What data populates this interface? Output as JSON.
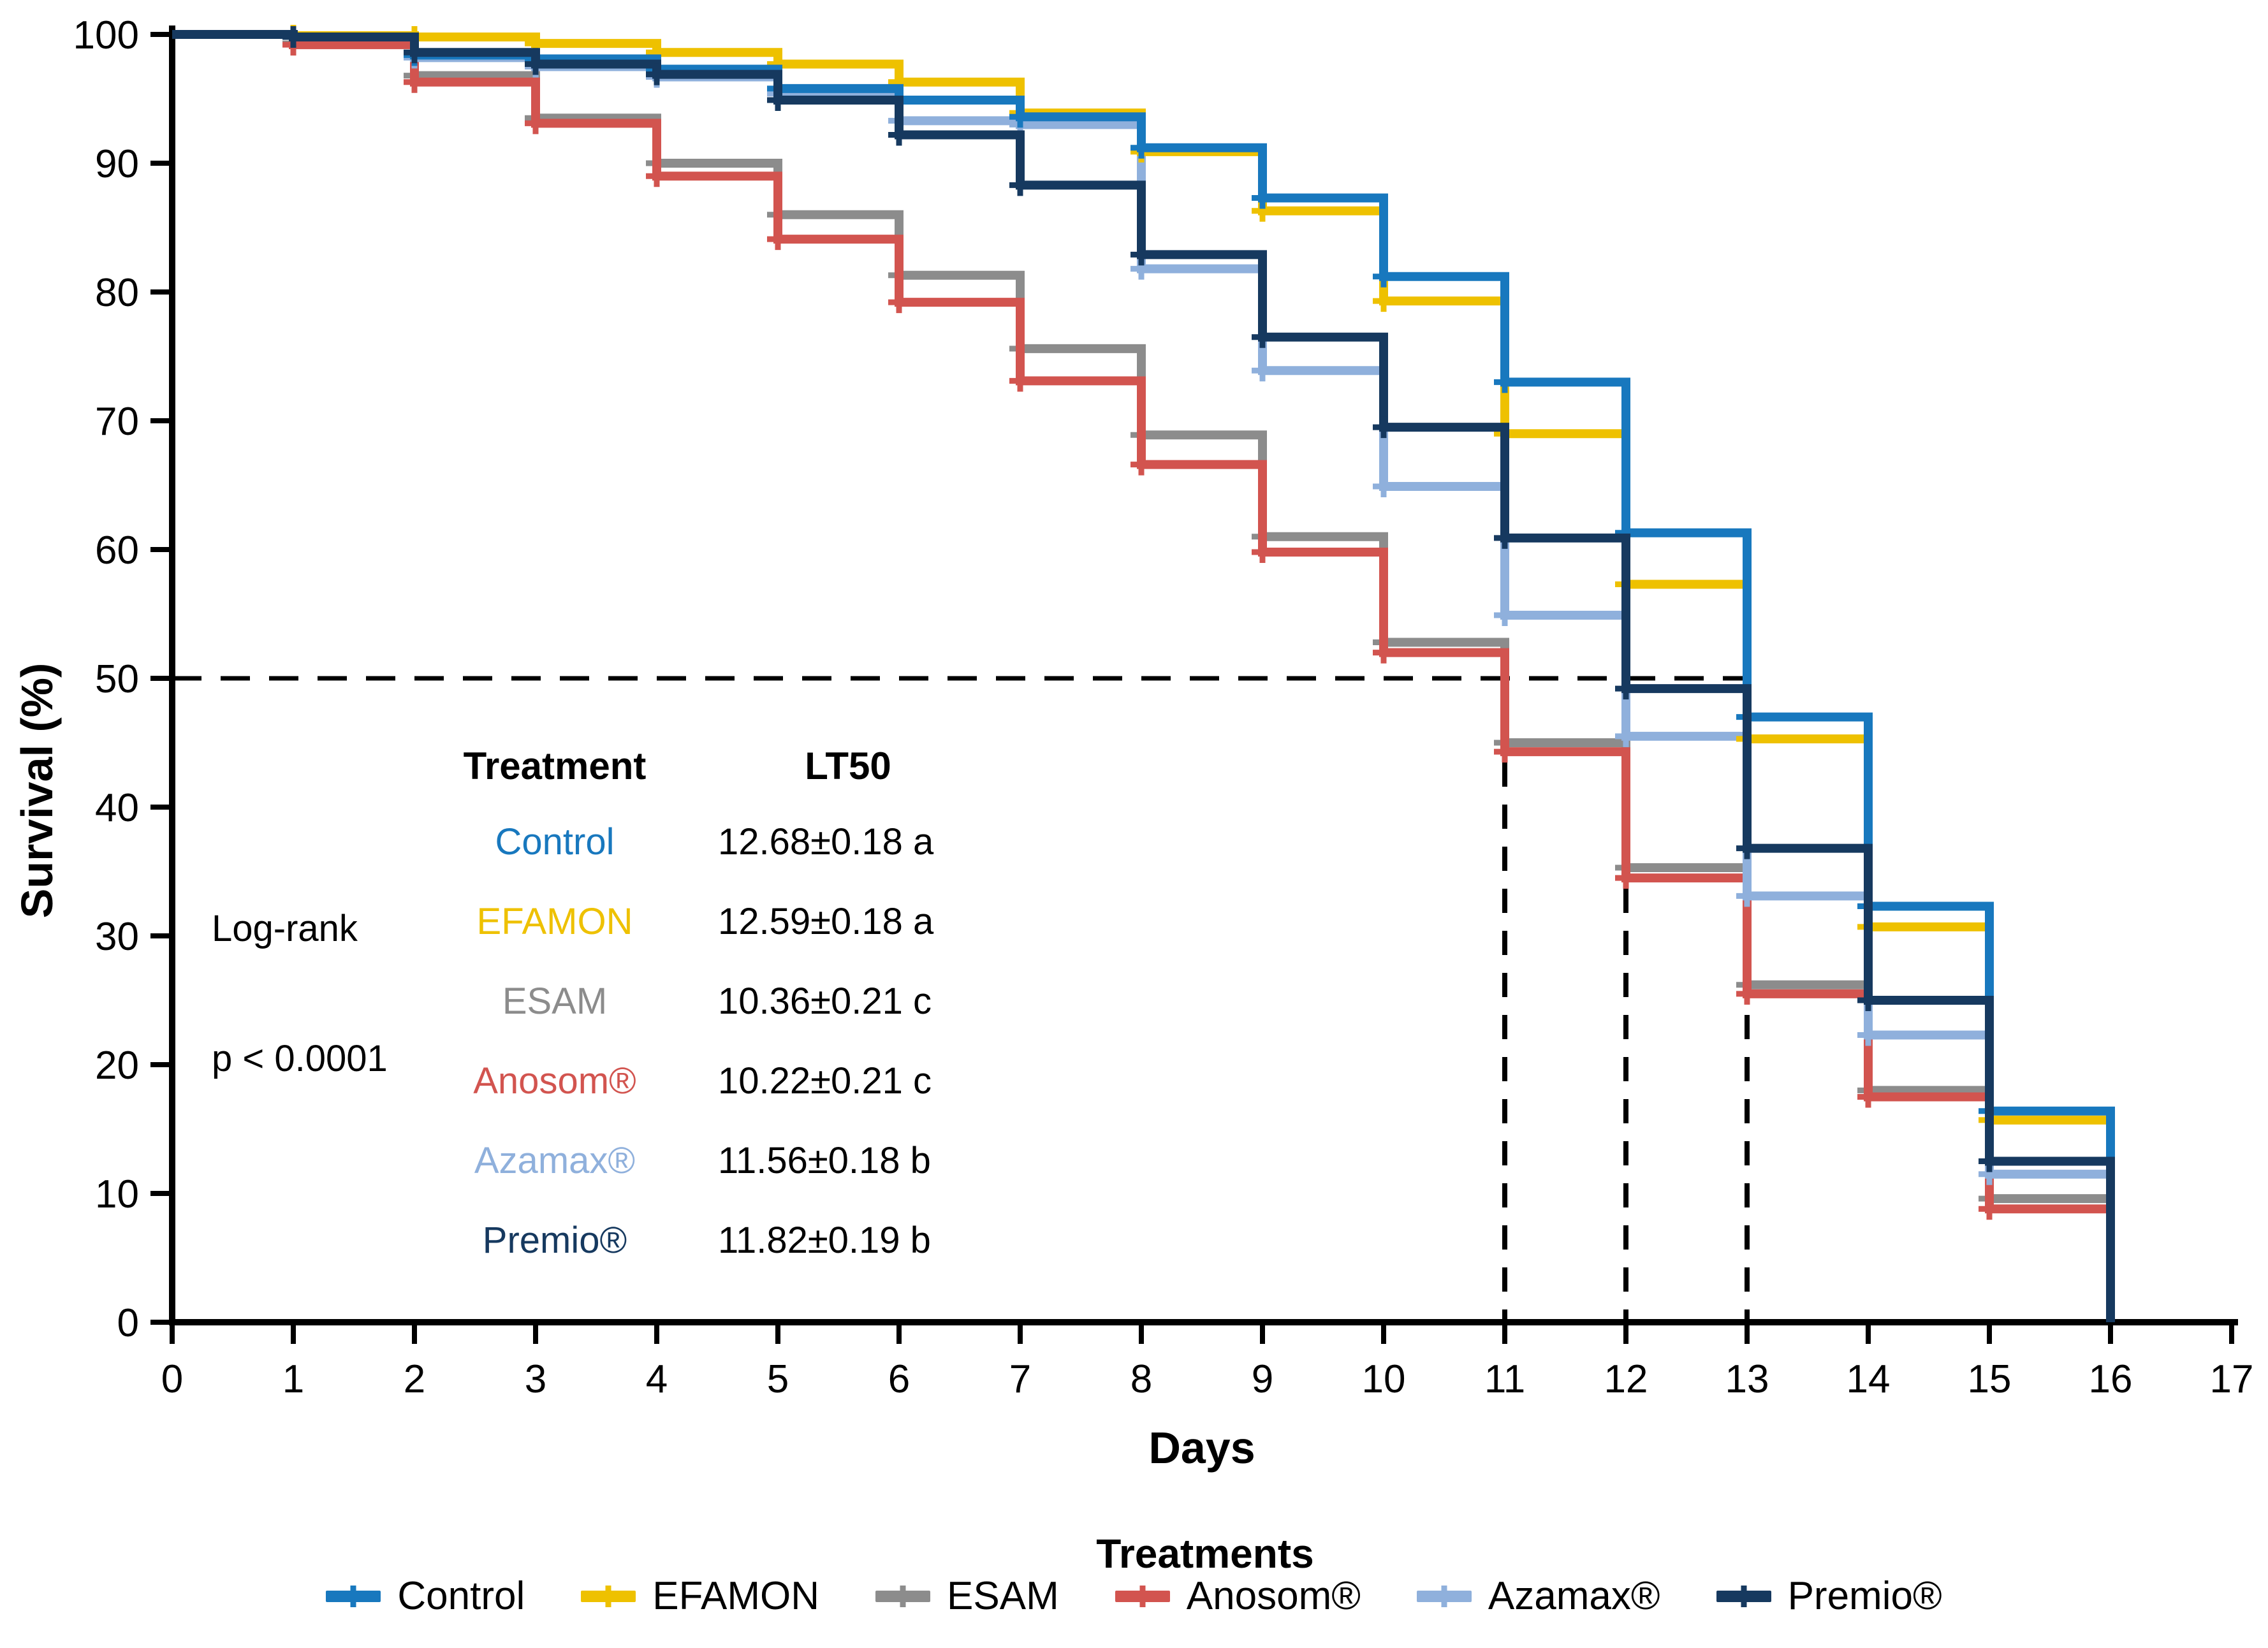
{
  "chart_data": {
    "type": "line",
    "subtype": "step-survival",
    "title": "",
    "xlabel": "Days",
    "ylabel": "Survival (%)",
    "xlim": [
      0,
      17
    ],
    "ylim": [
      0,
      100
    ],
    "x_tick_step": 1,
    "y_tick_step": 10,
    "grid": false,
    "legend_position": "bottom",
    "x_days": [
      0,
      1,
      2,
      3,
      4,
      5,
      6,
      7,
      8,
      9,
      10,
      11,
      12,
      13,
      14,
      15,
      16
    ],
    "series": [
      {
        "name": "Control",
        "color": "#1878BE",
        "values": [
          100,
          99.8,
          98.4,
          98.1,
          97.3,
          95.8,
          94.9,
          93.6,
          91.2,
          87.3,
          81.2,
          73.0,
          61.3,
          47.0,
          32.3,
          16.4,
          0
        ]
      },
      {
        "name": "EFAMON",
        "color": "#EEC100",
        "values": [
          100,
          99.9,
          99.8,
          99.3,
          98.6,
          97.7,
          96.3,
          93.9,
          90.9,
          86.3,
          79.3,
          69.0,
          57.3,
          45.3,
          30.7,
          15.7,
          0
        ]
      },
      {
        "name": "ESAM",
        "color": "#8C8C8C",
        "values": [
          100,
          99.3,
          96.8,
          93.5,
          90.0,
          86.0,
          81.3,
          75.6,
          68.9,
          61.0,
          52.8,
          45.0,
          35.3,
          26.2,
          18.0,
          9.6,
          0
        ]
      },
      {
        "name": "Anosom®",
        "color": "#D2544F",
        "values": [
          100,
          99.2,
          96.3,
          93.1,
          89.0,
          84.1,
          79.2,
          73.1,
          66.6,
          59.8,
          52.0,
          44.3,
          34.5,
          25.5,
          17.5,
          8.8,
          0
        ]
      },
      {
        "name": "Azamax®",
        "color": "#8FB0DC",
        "values": [
          100,
          99.8,
          98.2,
          97.5,
          96.7,
          95.4,
          93.3,
          93.0,
          81.8,
          73.9,
          64.9,
          54.9,
          45.5,
          33.1,
          22.3,
          11.5,
          0
        ]
      },
      {
        "name": "Premio®",
        "color": "#16395F",
        "values": [
          100,
          99.8,
          98.6,
          97.7,
          96.9,
          94.9,
          92.2,
          88.3,
          82.9,
          76.5,
          69.5,
          60.9,
          49.2,
          36.8,
          25.0,
          12.5,
          0
        ]
      }
    ],
    "guides": {
      "horizontal": {
        "y": 50,
        "x_from": 0,
        "x_to": 13
      },
      "verticals": [
        {
          "x": 11,
          "y_from": 0,
          "y_to": 50
        },
        {
          "x": 12,
          "y_from": 0,
          "y_to": 50
        },
        {
          "x": 13,
          "y_from": 0,
          "y_to": 50
        }
      ]
    }
  },
  "axes": {
    "x_title": "Days",
    "y_title": "Survival (%)"
  },
  "inset": {
    "col1_header": "Treatment",
    "col2_header": "LT50",
    "rows": [
      {
        "label": "Control",
        "value": "12.68±0.18 a"
      },
      {
        "label": "EFAMON",
        "value": "12.59±0.18 a"
      },
      {
        "label": "ESAM",
        "value": "10.36±0.21 c"
      },
      {
        "label": "Anosom®",
        "value": "10.22±0.21 c"
      },
      {
        "label": "Azamax®",
        "value": "11.56±0.18 b"
      },
      {
        "label": "Premio®",
        "value": "11.82±0.19 b"
      }
    ],
    "stat_test": "Log-rank",
    "p_value": "p < 0.0001"
  },
  "legend": {
    "title": "Treatments"
  }
}
